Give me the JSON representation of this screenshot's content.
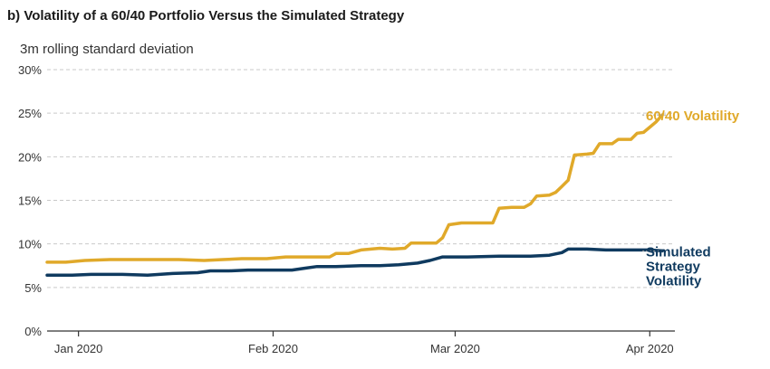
{
  "chart_data": {
    "type": "line",
    "title": "b) Volatility of a 60/40 Portfolio Versus the Simulated Strategy",
    "ylabel": "3m rolling standard deviation",
    "ylim": [
      0,
      30
    ],
    "y_ticks": [
      0,
      5,
      10,
      15,
      20,
      25,
      30
    ],
    "y_tick_labels": [
      "0%",
      "5%",
      "10%",
      "15%",
      "20%",
      "25%",
      "30%"
    ],
    "x_ticks": [
      "2020-01-01",
      "2020-02-01",
      "2020-03-01",
      "2020-04-01"
    ],
    "x_tick_labels": [
      "Jan 2020",
      "Feb 2020",
      "Mar 2020",
      "Apr 2020"
    ],
    "xlim": [
      "2019-12-27",
      "2020-04-05"
    ],
    "grid": true,
    "series": [
      {
        "name": "60/40 Volatility",
        "color": "#e0a92a",
        "label_lines": [
          "60/40 Volatility"
        ],
        "points": [
          [
            "2019-12-27",
            7.9
          ],
          [
            "2019-12-30",
            7.9
          ],
          [
            "2020-01-02",
            8.1
          ],
          [
            "2020-01-06",
            8.2
          ],
          [
            "2020-01-10",
            8.2
          ],
          [
            "2020-01-14",
            8.2
          ],
          [
            "2020-01-17",
            8.2
          ],
          [
            "2020-01-21",
            8.1
          ],
          [
            "2020-01-24",
            8.2
          ],
          [
            "2020-01-27",
            8.3
          ],
          [
            "2020-01-31",
            8.3
          ],
          [
            "2020-02-03",
            8.5
          ],
          [
            "2020-02-06",
            8.5
          ],
          [
            "2020-02-10",
            8.5
          ],
          [
            "2020-02-11",
            8.9
          ],
          [
            "2020-02-13",
            8.9
          ],
          [
            "2020-02-15",
            9.3
          ],
          [
            "2020-02-18",
            9.5
          ],
          [
            "2020-02-20",
            9.4
          ],
          [
            "2020-02-22",
            9.5
          ],
          [
            "2020-02-23",
            10.1
          ],
          [
            "2020-02-25",
            10.1
          ],
          [
            "2020-02-27",
            10.1
          ],
          [
            "2020-02-28",
            10.7
          ],
          [
            "2020-02-29",
            12.2
          ],
          [
            "2020-03-02",
            12.4
          ],
          [
            "2020-03-05",
            12.4
          ],
          [
            "2020-03-07",
            12.4
          ],
          [
            "2020-03-08",
            14.1
          ],
          [
            "2020-03-10",
            14.2
          ],
          [
            "2020-03-12",
            14.2
          ],
          [
            "2020-03-13",
            14.6
          ],
          [
            "2020-03-14",
            15.5
          ],
          [
            "2020-03-16",
            15.6
          ],
          [
            "2020-03-17",
            15.9
          ],
          [
            "2020-03-18",
            16.6
          ],
          [
            "2020-03-19",
            17.3
          ],
          [
            "2020-03-20",
            20.2
          ],
          [
            "2020-03-22",
            20.3
          ],
          [
            "2020-03-23",
            20.4
          ],
          [
            "2020-03-24",
            21.5
          ],
          [
            "2020-03-26",
            21.5
          ],
          [
            "2020-03-27",
            22.0
          ],
          [
            "2020-03-28",
            22.0
          ],
          [
            "2020-03-29",
            22.0
          ],
          [
            "2020-03-30",
            22.7
          ],
          [
            "2020-03-31",
            22.8
          ],
          [
            "2020-04-01",
            23.4
          ],
          [
            "2020-04-02",
            24.0
          ],
          [
            "2020-04-03",
            24.8
          ]
        ]
      },
      {
        "name": "Simulated Strategy Volatility",
        "color": "#0f3a5f",
        "label_lines": [
          "Simulated",
          "Strategy",
          "Volatility"
        ],
        "points": [
          [
            "2019-12-27",
            6.4
          ],
          [
            "2019-12-31",
            6.4
          ],
          [
            "2020-01-03",
            6.5
          ],
          [
            "2020-01-08",
            6.5
          ],
          [
            "2020-01-12",
            6.4
          ],
          [
            "2020-01-16",
            6.6
          ],
          [
            "2020-01-20",
            6.7
          ],
          [
            "2020-01-22",
            6.9
          ],
          [
            "2020-01-25",
            6.9
          ],
          [
            "2020-01-28",
            7.0
          ],
          [
            "2020-01-31",
            7.0
          ],
          [
            "2020-02-04",
            7.0
          ],
          [
            "2020-02-06",
            7.2
          ],
          [
            "2020-02-08",
            7.4
          ],
          [
            "2020-02-11",
            7.4
          ],
          [
            "2020-02-15",
            7.5
          ],
          [
            "2020-02-18",
            7.5
          ],
          [
            "2020-02-21",
            7.6
          ],
          [
            "2020-02-24",
            7.8
          ],
          [
            "2020-02-26",
            8.1
          ],
          [
            "2020-02-28",
            8.5
          ],
          [
            "2020-03-03",
            8.5
          ],
          [
            "2020-03-08",
            8.6
          ],
          [
            "2020-03-13",
            8.6
          ],
          [
            "2020-03-16",
            8.7
          ],
          [
            "2020-03-18",
            9.0
          ],
          [
            "2020-03-19",
            9.4
          ],
          [
            "2020-03-22",
            9.4
          ],
          [
            "2020-03-25",
            9.3
          ],
          [
            "2020-03-29",
            9.3
          ],
          [
            "2020-04-01",
            9.3
          ],
          [
            "2020-04-03",
            9.2
          ]
        ]
      }
    ]
  }
}
